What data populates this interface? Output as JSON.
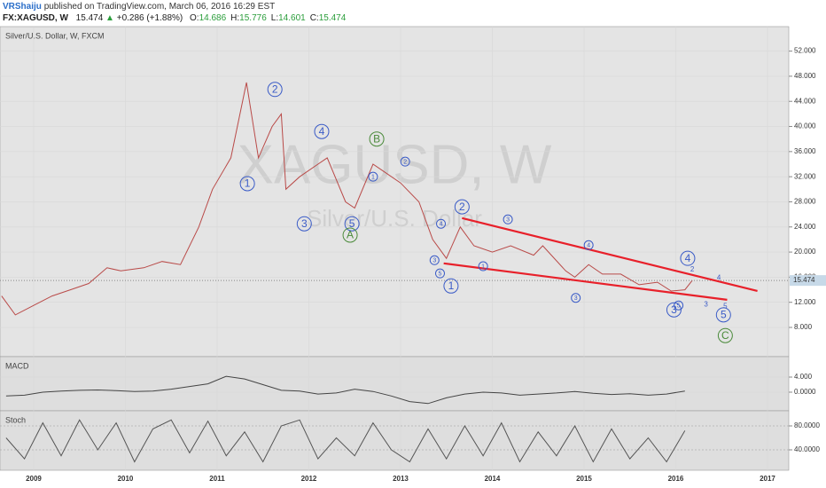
{
  "header": {
    "user": "VRShaiju",
    "published": "published on TradingView.com, March 06, 2016 16:29 EST",
    "symbol": "FX:XAGUSD, W",
    "last": "15.474",
    "change": "+0.286 (+1.88%)",
    "quote": [
      {
        "label": "O:",
        "value": "14.686"
      },
      {
        "label": "H:",
        "value": "15.776"
      },
      {
        "label": "L:",
        "value": "14.601"
      },
      {
        "label": "C:",
        "value": "15.474"
      }
    ]
  },
  "chart_data": [
    {
      "type": "line",
      "title": "Silver/U.S. Dollar, W, FXCM",
      "watermark": "XAGUSD, W",
      "watermark_subtitle": "Silver/U.S. Dollar",
      "color": "#b94a48",
      "x": [
        2008.65,
        2008.8,
        2009.0,
        2009.2,
        2009.4,
        2009.6,
        2009.8,
        2009.95,
        2010.2,
        2010.4,
        2010.6,
        2010.8,
        2010.95,
        2011.15,
        2011.32,
        2011.45,
        2011.6,
        2011.7,
        2011.75,
        2011.9,
        2012.1,
        2012.2,
        2012.4,
        2012.5,
        2012.7,
        2012.8,
        2013.0,
        2013.2,
        2013.35,
        2013.5,
        2013.65,
        2013.8,
        2014.0,
        2014.2,
        2014.45,
        2014.55,
        2014.8,
        2014.9,
        2015.05,
        2015.2,
        2015.4,
        2015.6,
        2015.8,
        2015.95,
        2016.1,
        2016.18
      ],
      "values": [
        13,
        10,
        11.5,
        13,
        14,
        15,
        17.5,
        17,
        17.5,
        18.5,
        18,
        24,
        30,
        35,
        47,
        35,
        40,
        42,
        30,
        32,
        34,
        35,
        28,
        27,
        34,
        33,
        31,
        28,
        22,
        19,
        24,
        21,
        20,
        21,
        19.5,
        21,
        17,
        16,
        18,
        16.5,
        16.5,
        14.8,
        15.2,
        13.8,
        14,
        15.474
      ],
      "last_price": 15.474,
      "xlim": [
        2008.633,
        2017.232
      ],
      "xticks": [
        2009,
        2010,
        2011,
        2012,
        2013,
        2014,
        2015,
        2016,
        2017
      ],
      "ylim": [
        3.34,
        55.9
      ],
      "yticks": [
        {
          "value": 8,
          "label": "8.000"
        },
        {
          "value": 12,
          "label": "12.000"
        },
        {
          "value": 16,
          "label": "16.000"
        },
        {
          "value": 20,
          "label": "20.000"
        },
        {
          "value": 24,
          "label": "24.000"
        },
        {
          "value": 28,
          "label": "28.000"
        },
        {
          "value": 32,
          "label": "32.000"
        },
        {
          "value": 36,
          "label": "36.000"
        },
        {
          "value": 40,
          "label": "40.000"
        },
        {
          "value": 44,
          "label": "44.000"
        },
        {
          "value": 48,
          "label": "48.000"
        },
        {
          "value": 52,
          "label": "52.000"
        }
      ],
      "trendlines": [
        {
          "color": "#e8202a",
          "x": [
            2013.67,
            2016.89
          ],
          "values": [
            25.4,
            13.8
          ]
        },
        {
          "color": "#e8202a",
          "x": [
            2013.47,
            2016.56
          ],
          "values": [
            18.2,
            12.4
          ]
        }
      ],
      "annotations": [
        {
          "text": "1",
          "x": 2011.33,
          "y": 30.9,
          "style": "large",
          "color": "#3a5bc7"
        },
        {
          "text": "2",
          "x": 2011.63,
          "y": 45.9,
          "style": "large",
          "color": "#3a5bc7"
        },
        {
          "text": "4",
          "x": 2012.14,
          "y": 39.2,
          "style": "large",
          "color": "#3a5bc7"
        },
        {
          "text": "3",
          "x": 2011.95,
          "y": 24.5,
          "style": "large",
          "color": "#3a5bc7"
        },
        {
          "text": "5",
          "x": 2012.47,
          "y": 24.5,
          "style": "large",
          "color": "#3a5bc7"
        },
        {
          "text": "A",
          "x": 2012.45,
          "y": 22.7,
          "style": "large",
          "color": "#4a8a3a"
        },
        {
          "text": "B",
          "x": 2012.74,
          "y": 38.0,
          "style": "large",
          "color": "#4a8a3a"
        },
        {
          "text": "1",
          "x": 2012.7,
          "y": 32.0,
          "style": "small",
          "color": "#3a5bc7"
        },
        {
          "text": "2",
          "x": 2013.05,
          "y": 34.4,
          "style": "small",
          "color": "#3a5bc7"
        },
        {
          "text": "4",
          "x": 2013.44,
          "y": 24.5,
          "style": "small",
          "color": "#3a5bc7"
        },
        {
          "text": "3",
          "x": 2013.37,
          "y": 18.7,
          "style": "small",
          "color": "#3a5bc7"
        },
        {
          "text": "5",
          "x": 2013.43,
          "y": 16.6,
          "style": "small",
          "color": "#3a5bc7"
        },
        {
          "text": "1",
          "x": 2013.55,
          "y": 14.6,
          "style": "large",
          "color": "#3a5bc7"
        },
        {
          "text": "2",
          "x": 2013.67,
          "y": 27.2,
          "style": "large",
          "color": "#3a5bc7"
        },
        {
          "text": "1",
          "x": 2013.9,
          "y": 17.75,
          "style": "small",
          "color": "#3a5bc7"
        },
        {
          "text": "3",
          "x": 2014.17,
          "y": 25.2,
          "style": "small",
          "color": "#3a5bc7"
        },
        {
          "text": "4",
          "x": 2015.05,
          "y": 21.1,
          "style": "small",
          "color": "#3a5bc7"
        },
        {
          "text": "3",
          "x": 2014.91,
          "y": 12.7,
          "style": "small",
          "color": "#3a5bc7"
        },
        {
          "text": "4",
          "x": 2016.13,
          "y": 19.0,
          "style": "large",
          "color": "#3a5bc7"
        },
        {
          "text": "2",
          "x": 2016.18,
          "y": 17.3,
          "style": "plain",
          "color": "#3a5bc7"
        },
        {
          "text": "3",
          "x": 2015.98,
          "y": 10.8,
          "style": "large",
          "color": "#3a5bc7"
        },
        {
          "text": "5",
          "x": 2016.03,
          "y": 11.5,
          "style": "small",
          "color": "#3a5bc7"
        },
        {
          "text": "3",
          "x": 2016.33,
          "y": 11.7,
          "style": "plain",
          "color": "#3a5bc7"
        },
        {
          "text": "4",
          "x": 2016.47,
          "y": 15.9,
          "style": "plain",
          "color": "#3a5bc7"
        },
        {
          "text": "5",
          "x": 2016.54,
          "y": 11.4,
          "style": "plain",
          "color": "#3a5bc7"
        },
        {
          "text": "5",
          "x": 2016.52,
          "y": 10.0,
          "style": "large",
          "color": "#3a5bc7"
        },
        {
          "text": "C",
          "x": 2016.54,
          "y": 6.7,
          "style": "large",
          "color": "#4a8a3a"
        }
      ]
    },
    {
      "type": "line",
      "title": "MACD",
      "color": "#444",
      "x": [
        2008.7,
        2008.9,
        2009.1,
        2009.3,
        2009.5,
        2009.7,
        2009.9,
        2010.1,
        2010.3,
        2010.5,
        2010.7,
        2010.9,
        2011.1,
        2011.3,
        2011.5,
        2011.7,
        2011.9,
        2012.1,
        2012.3,
        2012.5,
        2012.7,
        2012.9,
        2013.1,
        2013.3,
        2013.5,
        2013.7,
        2013.9,
        2014.1,
        2014.3,
        2014.5,
        2014.7,
        2014.9,
        2015.1,
        2015.3,
        2015.5,
        2015.7,
        2015.9,
        2016.1
      ],
      "values": [
        -1,
        -0.8,
        0,
        0.3,
        0.5,
        0.6,
        0.4,
        0.2,
        0.3,
        0.8,
        1.5,
        2.2,
        4.2,
        3.5,
        2,
        0.5,
        0.3,
        -0.5,
        -0.2,
        0.8,
        0.2,
        -1,
        -2.5,
        -3,
        -1.5,
        -0.5,
        0,
        -0.2,
        -0.8,
        -0.5,
        -0.2,
        0.2,
        -0.3,
        -0.6,
        -0.4,
        -0.8,
        -0.5,
        0.3
      ],
      "ylim": [
        -4.94,
        9.41
      ],
      "yticks": [
        {
          "value": 0,
          "label": "0.0000"
        },
        {
          "value": 4,
          "label": "4.000"
        }
      ]
    },
    {
      "type": "line",
      "title": "Stoch",
      "color": "#555",
      "x": [
        2008.7,
        2008.9,
        2009.1,
        2009.3,
        2009.5,
        2009.7,
        2009.9,
        2010.1,
        2010.3,
        2010.5,
        2010.7,
        2010.9,
        2011.1,
        2011.3,
        2011.5,
        2011.7,
        2011.9,
        2012.1,
        2012.3,
        2012.5,
        2012.7,
        2012.9,
        2013.1,
        2013.3,
        2013.5,
        2013.7,
        2013.9,
        2014.1,
        2014.3,
        2014.5,
        2014.7,
        2014.9,
        2015.1,
        2015.3,
        2015.5,
        2015.7,
        2015.9,
        2016.1
      ],
      "values": [
        60,
        25,
        85,
        30,
        90,
        40,
        85,
        20,
        75,
        90,
        35,
        88,
        30,
        70,
        20,
        80,
        90,
        25,
        60,
        30,
        85,
        40,
        20,
        75,
        25,
        80,
        30,
        85,
        20,
        70,
        30,
        80,
        20,
        75,
        25,
        60,
        20,
        72
      ],
      "ylim": [
        5.9,
        105.2
      ],
      "yticks": [
        {
          "value": 40,
          "label": "40.0000"
        },
        {
          "value": 80,
          "label": "80.0000"
        }
      ]
    }
  ]
}
